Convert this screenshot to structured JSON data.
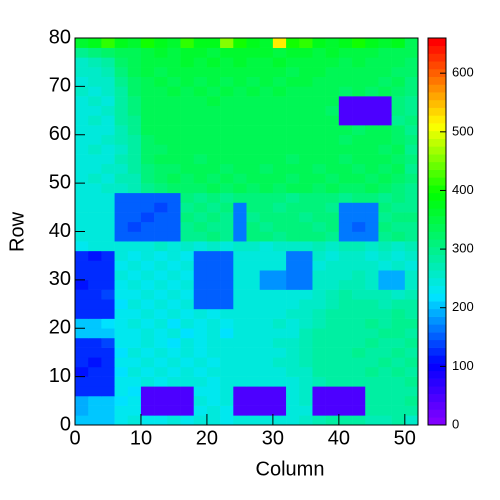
{
  "chart_data": {
    "type": "heatmap",
    "xlabel": "Column",
    "ylabel": "Row",
    "colormap": "rainbow",
    "xlim": [
      0,
      52
    ],
    "ylim": [
      0,
      80
    ],
    "zlim": [
      0,
      660
    ],
    "xticks": [
      0,
      10,
      20,
      30,
      40,
      50
    ],
    "yticks": [
      0,
      10,
      20,
      30,
      40,
      50,
      60,
      70,
      80
    ],
    "zticks": [
      0,
      100,
      200,
      300,
      400,
      500,
      600
    ],
    "xbins": [
      0,
      2,
      4,
      6,
      8,
      10,
      12,
      14,
      16,
      18,
      20,
      22,
      24,
      26,
      28,
      30,
      32,
      34,
      36,
      38,
      40,
      42,
      44,
      46,
      48,
      50,
      52
    ],
    "ybins": [
      0,
      2,
      4,
      6,
      8,
      10,
      12,
      14,
      16,
      18,
      20,
      22,
      24,
      26,
      28,
      30,
      32,
      34,
      36,
      38,
      40,
      42,
      44,
      46,
      48,
      50,
      52,
      54,
      56,
      58,
      60,
      62,
      64,
      66,
      68,
      70,
      72,
      74,
      76,
      78,
      80
    ],
    "z": [
      [
        200,
        200,
        210,
        230,
        240,
        230,
        230,
        240,
        230,
        240,
        240,
        230,
        240,
        240,
        240,
        250,
        250,
        260,
        270,
        280,
        280,
        280,
        270,
        270,
        280,
        260
      ],
      [
        190,
        200,
        210,
        230,
        230,
        40,
        40,
        40,
        40,
        230,
        240,
        230,
        40,
        40,
        40,
        40,
        250,
        250,
        40,
        40,
        40,
        40,
        280,
        280,
        290,
        280
      ],
      [
        190,
        210,
        210,
        220,
        230,
        40,
        40,
        40,
        40,
        240,
        230,
        240,
        40,
        40,
        40,
        40,
        250,
        260,
        40,
        40,
        40,
        40,
        290,
        290,
        290,
        300
      ],
      [
        120,
        120,
        130,
        230,
        220,
        40,
        40,
        40,
        40,
        230,
        230,
        240,
        40,
        40,
        40,
        40,
        240,
        260,
        40,
        40,
        40,
        40,
        280,
        290,
        290,
        280
      ],
      [
        120,
        120,
        130,
        230,
        230,
        240,
        230,
        250,
        240,
        240,
        230,
        240,
        240,
        250,
        240,
        250,
        250,
        260,
        270,
        280,
        290,
        280,
        290,
        290,
        290,
        300
      ],
      [
        110,
        120,
        130,
        220,
        240,
        230,
        240,
        230,
        240,
        230,
        240,
        240,
        250,
        240,
        240,
        250,
        260,
        260,
        280,
        290,
        290,
        290,
        300,
        290,
        300,
        290
      ],
      [
        120,
        110,
        130,
        230,
        230,
        240,
        230,
        240,
        230,
        240,
        230,
        240,
        240,
        250,
        240,
        260,
        260,
        270,
        280,
        280,
        290,
        290,
        290,
        300,
        290,
        300
      ],
      [
        120,
        120,
        130,
        220,
        240,
        230,
        240,
        230,
        240,
        230,
        240,
        240,
        250,
        240,
        250,
        250,
        260,
        270,
        280,
        290,
        290,
        300,
        290,
        290,
        300,
        290
      ],
      [
        120,
        120,
        140,
        230,
        230,
        240,
        230,
        220,
        240,
        230,
        240,
        240,
        240,
        250,
        240,
        260,
        260,
        270,
        280,
        290,
        290,
        290,
        300,
        290,
        290,
        300
      ],
      [
        200,
        210,
        210,
        230,
        230,
        240,
        230,
        240,
        220,
        230,
        240,
        220,
        240,
        240,
        250,
        250,
        250,
        270,
        280,
        280,
        290,
        290,
        290,
        300,
        300,
        290
      ],
      [
        210,
        200,
        220,
        230,
        240,
        230,
        240,
        220,
        240,
        230,
        240,
        230,
        240,
        250,
        240,
        260,
        250,
        260,
        270,
        280,
        290,
        290,
        300,
        290,
        300,
        300
      ],
      [
        120,
        120,
        130,
        230,
        230,
        240,
        230,
        240,
        230,
        240,
        230,
        240,
        240,
        250,
        240,
        250,
        260,
        260,
        270,
        280,
        290,
        290,
        290,
        290,
        300,
        290
      ],
      [
        120,
        130,
        130,
        220,
        240,
        230,
        240,
        230,
        240,
        150,
        150,
        150,
        240,
        250,
        240,
        250,
        250,
        260,
        260,
        270,
        280,
        280,
        280,
        270,
        280,
        290
      ],
      [
        120,
        120,
        140,
        230,
        230,
        240,
        230,
        240,
        230,
        150,
        150,
        150,
        240,
        240,
        250,
        250,
        250,
        250,
        260,
        270,
        280,
        270,
        270,
        270,
        260,
        270
      ],
      [
        110,
        120,
        130,
        230,
        240,
        230,
        240,
        230,
        240,
        150,
        150,
        150,
        240,
        240,
        180,
        180,
        170,
        170,
        260,
        260,
        270,
        270,
        260,
        190,
        190,
        260
      ],
      [
        120,
        120,
        130,
        240,
        230,
        240,
        230,
        240,
        230,
        150,
        150,
        150,
        240,
        250,
        180,
        180,
        170,
        170,
        260,
        260,
        260,
        270,
        260,
        190,
        190,
        260
      ],
      [
        120,
        120,
        130,
        230,
        240,
        230,
        240,
        230,
        240,
        150,
        150,
        150,
        240,
        240,
        250,
        240,
        170,
        170,
        250,
        260,
        260,
        260,
        260,
        250,
        260,
        250
      ],
      [
        120,
        110,
        130,
        240,
        230,
        240,
        230,
        240,
        230,
        150,
        150,
        150,
        240,
        250,
        240,
        250,
        170,
        170,
        260,
        250,
        260,
        260,
        250,
        260,
        250,
        260
      ],
      [
        230,
        240,
        240,
        250,
        250,
        250,
        260,
        250,
        260,
        250,
        260,
        250,
        260,
        260,
        250,
        260,
        260,
        260,
        270,
        260,
        270,
        270,
        260,
        270,
        260,
        270
      ],
      [
        250,
        250,
        250,
        150,
        150,
        150,
        150,
        150,
        300,
        300,
        310,
        300,
        170,
        310,
        310,
        300,
        310,
        310,
        310,
        300,
        160,
        160,
        160,
        300,
        310,
        300
      ],
      [
        250,
        240,
        250,
        150,
        140,
        150,
        150,
        150,
        300,
        310,
        300,
        300,
        170,
        310,
        300,
        310,
        310,
        310,
        300,
        310,
        160,
        150,
        160,
        310,
        300,
        300
      ],
      [
        240,
        250,
        250,
        150,
        150,
        140,
        150,
        150,
        310,
        300,
        310,
        300,
        170,
        300,
        310,
        310,
        310,
        300,
        310,
        310,
        160,
        160,
        160,
        300,
        310,
        310
      ],
      [
        250,
        250,
        240,
        150,
        150,
        150,
        140,
        150,
        300,
        310,
        300,
        310,
        170,
        310,
        310,
        300,
        310,
        310,
        310,
        300,
        160,
        160,
        160,
        310,
        300,
        300
      ],
      [
        250,
        250,
        250,
        150,
        150,
        150,
        150,
        150,
        310,
        300,
        310,
        300,
        310,
        310,
        310,
        310,
        300,
        310,
        310,
        310,
        300,
        310,
        310,
        300,
        310,
        300
      ],
      [
        250,
        250,
        260,
        260,
        270,
        300,
        310,
        320,
        320,
        320,
        330,
        320,
        330,
        320,
        330,
        320,
        330,
        330,
        320,
        330,
        320,
        320,
        330,
        320,
        310,
        300
      ],
      [
        250,
        260,
        250,
        270,
        270,
        310,
        320,
        330,
        320,
        330,
        320,
        330,
        320,
        330,
        330,
        330,
        320,
        330,
        330,
        320,
        330,
        330,
        320,
        330,
        320,
        310
      ],
      [
        240,
        250,
        260,
        260,
        280,
        310,
        320,
        320,
        330,
        330,
        330,
        320,
        330,
        330,
        320,
        330,
        330,
        330,
        320,
        330,
        330,
        320,
        330,
        320,
        330,
        300
      ],
      [
        250,
        250,
        250,
        270,
        280,
        320,
        330,
        330,
        330,
        320,
        330,
        330,
        330,
        330,
        330,
        330,
        320,
        330,
        330,
        330,
        320,
        330,
        330,
        330,
        320,
        310
      ],
      [
        250,
        260,
        250,
        260,
        290,
        320,
        320,
        330,
        330,
        330,
        330,
        330,
        330,
        340,
        330,
        330,
        330,
        330,
        330,
        330,
        330,
        330,
        330,
        320,
        330,
        300
      ],
      [
        240,
        250,
        260,
        270,
        290,
        320,
        330,
        330,
        330,
        330,
        340,
        330,
        330,
        330,
        340,
        330,
        330,
        330,
        330,
        330,
        320,
        330,
        330,
        330,
        320,
        310
      ],
      [
        250,
        250,
        250,
        270,
        300,
        330,
        330,
        340,
        330,
        340,
        330,
        340,
        330,
        340,
        330,
        340,
        330,
        340,
        330,
        330,
        330,
        320,
        330,
        330,
        320,
        300
      ],
      [
        250,
        260,
        250,
        280,
        300,
        330,
        340,
        330,
        340,
        330,
        340,
        330,
        340,
        330,
        340,
        330,
        340,
        330,
        330,
        330,
        40,
        40,
        40,
        40,
        300,
        310
      ],
      [
        250,
        250,
        260,
        280,
        310,
        330,
        340,
        340,
        340,
        340,
        340,
        340,
        340,
        340,
        330,
        340,
        340,
        340,
        330,
        320,
        40,
        40,
        40,
        40,
        310,
        300
      ],
      [
        250,
        260,
        250,
        290,
        310,
        340,
        340,
        340,
        340,
        340,
        350,
        340,
        340,
        340,
        340,
        340,
        340,
        340,
        340,
        330,
        40,
        40,
        40,
        40,
        310,
        300
      ],
      [
        260,
        250,
        260,
        290,
        320,
        340,
        340,
        350,
        340,
        350,
        340,
        350,
        340,
        350,
        340,
        350,
        340,
        340,
        340,
        340,
        320,
        330,
        320,
        330,
        320,
        310
      ],
      [
        250,
        260,
        260,
        300,
        320,
        340,
        350,
        340,
        350,
        340,
        350,
        340,
        350,
        340,
        350,
        340,
        350,
        350,
        340,
        340,
        330,
        340,
        330,
        320,
        330,
        310
      ],
      [
        260,
        260,
        270,
        310,
        330,
        350,
        340,
        350,
        350,
        350,
        350,
        350,
        350,
        350,
        350,
        350,
        340,
        350,
        350,
        340,
        340,
        330,
        340,
        330,
        320,
        320
      ],
      [
        260,
        270,
        280,
        320,
        330,
        350,
        350,
        350,
        360,
        350,
        360,
        350,
        360,
        350,
        350,
        360,
        350,
        350,
        350,
        350,
        340,
        350,
        340,
        340,
        330,
        320
      ],
      [
        300,
        310,
        320,
        330,
        340,
        350,
        360,
        350,
        360,
        360,
        350,
        360,
        360,
        360,
        360,
        350,
        360,
        360,
        350,
        360,
        350,
        350,
        350,
        340,
        340,
        330
      ],
      [
        360,
        380,
        420,
        380,
        360,
        400,
        380,
        360,
        420,
        380,
        380,
        460,
        400,
        380,
        360,
        520,
        400,
        420,
        380,
        360,
        380,
        400,
        380,
        360,
        380,
        340
      ]
    ]
  }
}
